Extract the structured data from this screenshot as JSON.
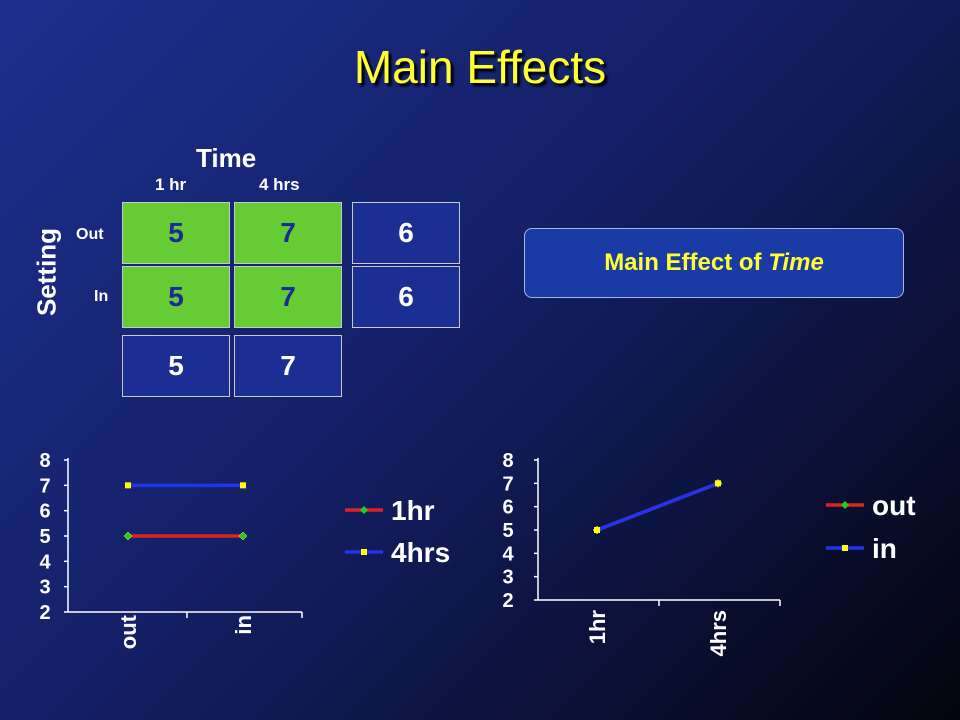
{
  "slide": {
    "title": "Main Effects"
  },
  "table": {
    "column_header": "Time",
    "columns": [
      "1 hr",
      "4 hrs"
    ],
    "row_header": "Setting",
    "rows": [
      "Out",
      "In"
    ],
    "cells": [
      [
        "5",
        "7"
      ],
      [
        "5",
        "7"
      ]
    ],
    "row_means": [
      "6",
      "6"
    ],
    "column_means": [
      "5",
      "7"
    ]
  },
  "effect_box": {
    "prefix": "Main Effect of ",
    "emphasis": "Time"
  },
  "colors": {
    "title": "#ffff33",
    "highlight_cell": "#66cc33",
    "series_red": "#dd2222",
    "series_blue": "#2233ee",
    "marker_green": "#22cc22",
    "marker_yellow": "#ffff00"
  },
  "chart_data": [
    {
      "type": "line",
      "categories": [
        "out",
        "in"
      ],
      "ylim": [
        2,
        8
      ],
      "yticks": [
        "2",
        "3",
        "4",
        "5",
        "6",
        "7",
        "8"
      ],
      "series": [
        {
          "name": "1hr",
          "values": [
            5,
            5
          ],
          "color": "#dd2222",
          "marker": "#22cc22"
        },
        {
          "name": "4hrs",
          "values": [
            7,
            7
          ],
          "color": "#2233ee",
          "marker": "#ffff00"
        }
      ],
      "legend": "right"
    },
    {
      "type": "line",
      "categories": [
        "1hr",
        "4hrs"
      ],
      "ylim": [
        2,
        8
      ],
      "yticks": [
        "2",
        "3",
        "4",
        "5",
        "6",
        "7",
        "8"
      ],
      "series": [
        {
          "name": "out",
          "values": [
            5,
            7
          ],
          "color": "#dd2222",
          "marker": "#22cc22"
        },
        {
          "name": "in",
          "values": [
            5,
            7
          ],
          "color": "#2233ee",
          "marker": "#ffff00"
        }
      ],
      "legend": "right"
    }
  ]
}
